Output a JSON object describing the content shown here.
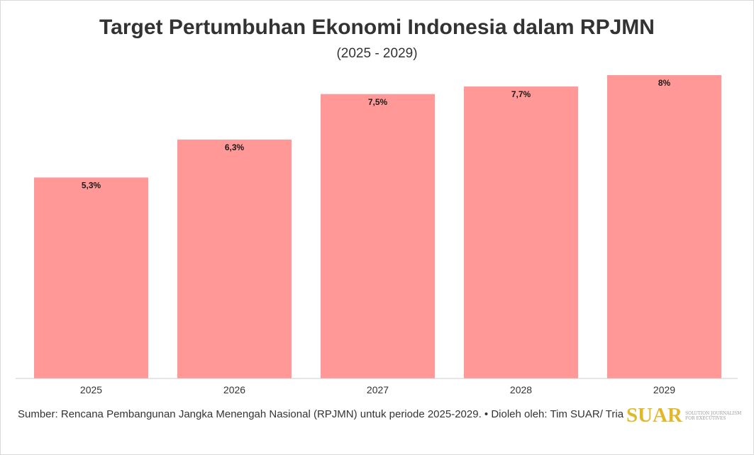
{
  "title": "Target Pertumbuhan Ekonomi Indonesia dalam RPJMN",
  "subtitle": "(2025 - 2029)",
  "source_note": "Sumber: Rencana Pembangunan Jangka Menengah Nasional (RPJMN) untuk periode 2025-2029. • Dioleh oleh: Tim SUAR/ Tria",
  "logo": {
    "text": "SUAR",
    "tagline": "SOLUTION JOURNALISM FOR EXECUTIVES",
    "color": "#e2b82b"
  },
  "chart_data": {
    "type": "bar",
    "title": "Target Pertumbuhan Ekonomi Indonesia dalam RPJMN",
    "subtitle": "(2025 - 2029)",
    "categories": [
      "2025",
      "2026",
      "2027",
      "2028",
      "2029"
    ],
    "values": [
      5.3,
      6.3,
      7.5,
      7.7,
      8
    ],
    "data_labels": [
      "5,3%",
      "6,3%",
      "7,5%",
      "7,7%",
      "8%"
    ],
    "ylim": [
      0,
      10
    ],
    "grid": false,
    "legend": "none",
    "bar_color": "#ff9896",
    "axis_color": "#cccccc"
  }
}
